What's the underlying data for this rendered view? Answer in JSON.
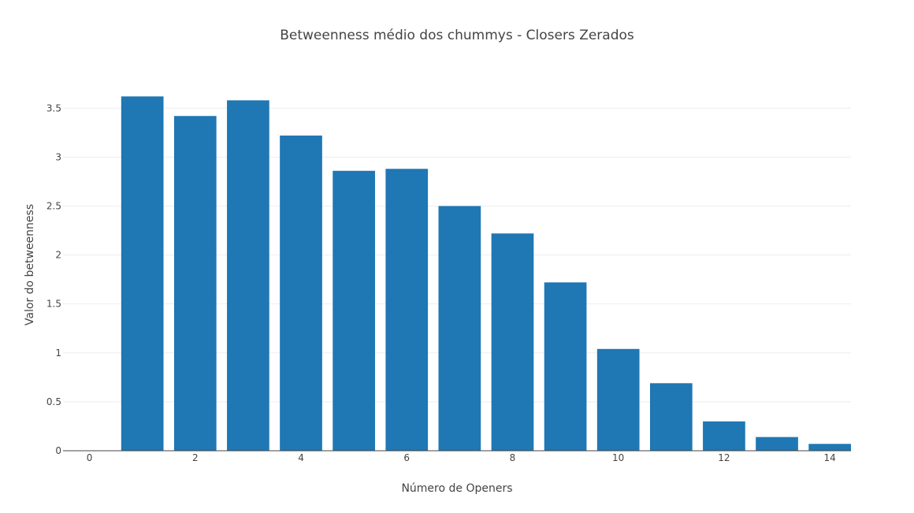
{
  "chart_data": {
    "type": "bar",
    "title": "Betweenness médio dos chummys - Closers Zerados",
    "xlabel": "Número de Openers",
    "ylabel": "Valor do betweenness",
    "x": [
      1,
      2,
      3,
      4,
      5,
      6,
      7,
      8,
      9,
      10,
      11,
      12,
      13,
      14
    ],
    "values": [
      3.62,
      3.42,
      3.58,
      3.22,
      2.86,
      2.88,
      2.5,
      2.22,
      1.72,
      1.04,
      0.69,
      0.3,
      0.14,
      0.07
    ],
    "xlim": [
      -0.5,
      14.4
    ],
    "ylim": [
      0,
      3.8
    ],
    "xticks": [
      "0",
      "2",
      "4",
      "6",
      "8",
      "10",
      "12",
      "14"
    ],
    "yticks": [
      "0",
      "0.5",
      "1",
      "1.5",
      "2",
      "2.5",
      "3",
      "3.5"
    ],
    "grid": true,
    "colors": {
      "bar": "#1f77b4"
    }
  }
}
